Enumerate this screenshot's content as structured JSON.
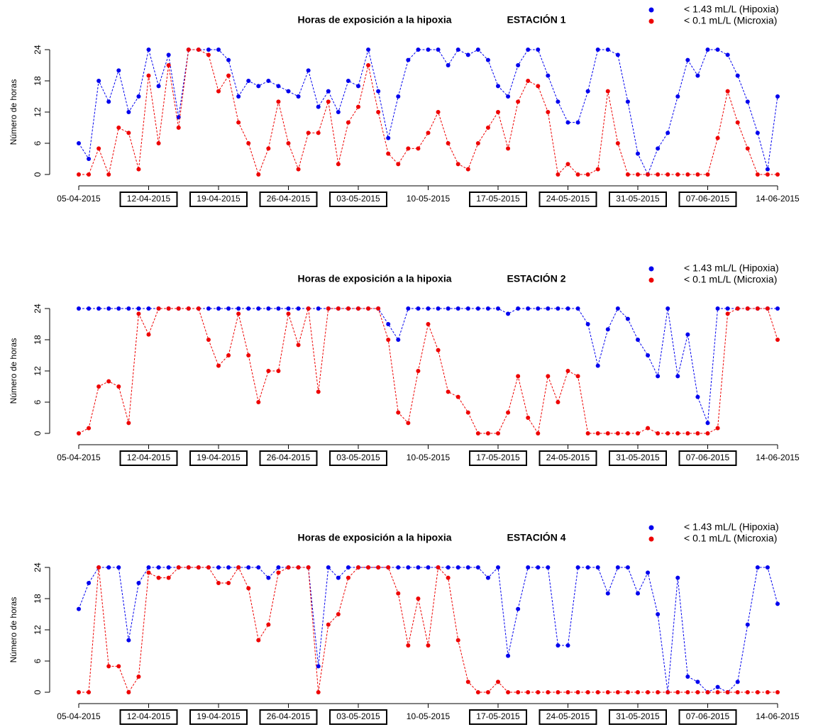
{
  "chart_data": [
    {
      "type": "line",
      "title": "Horas de exposición a la hipoxia",
      "subtitle": "ESTACIÓN 1",
      "y_label": "Número de horas",
      "x": [
        "05-04-2015",
        "06-04-2015",
        "07-04-2015",
        "08-04-2015",
        "09-04-2015",
        "10-04-2015",
        "11-04-2015",
        "12-04-2015",
        "13-04-2015",
        "14-04-2015",
        "15-04-2015",
        "16-04-2015",
        "17-04-2015",
        "18-04-2015",
        "19-04-2015",
        "20-04-2015",
        "21-04-2015",
        "22-04-2015",
        "23-04-2015",
        "24-04-2015",
        "25-04-2015",
        "26-04-2015",
        "27-04-2015",
        "28-04-2015",
        "29-04-2015",
        "30-04-2015",
        "01-05-2015",
        "02-05-2015",
        "03-05-2015",
        "04-05-2015",
        "05-05-2015",
        "06-05-2015",
        "07-05-2015",
        "08-05-2015",
        "09-05-2015",
        "10-05-2015",
        "11-05-2015",
        "12-05-2015",
        "13-05-2015",
        "14-05-2015",
        "15-05-2015",
        "16-05-2015",
        "17-05-2015",
        "18-05-2015",
        "19-05-2015",
        "20-05-2015",
        "21-05-2015",
        "22-05-2015",
        "23-05-2015",
        "24-05-2015",
        "25-05-2015",
        "26-05-2015",
        "27-05-2015",
        "28-05-2015",
        "29-05-2015",
        "30-05-2015",
        "31-05-2015",
        "01-06-2015",
        "02-06-2015",
        "03-06-2015",
        "04-06-2015",
        "05-06-2015",
        "06-06-2015",
        "07-06-2015",
        "08-06-2015",
        "09-06-2015",
        "10-06-2015",
        "11-06-2015",
        "12-06-2015",
        "13-06-2015",
        "14-06-2015"
      ],
      "series": [
        {
          "name": "< 1.43 mL/L (Hipoxia)",
          "color": "#0000ee",
          "values": [
            6,
            3,
            18,
            14,
            20,
            12,
            15,
            24,
            17,
            23,
            11,
            24,
            24,
            24,
            24,
            22,
            15,
            18,
            17,
            18,
            17,
            16,
            15,
            20,
            13,
            16,
            12,
            18,
            17,
            24,
            16,
            7,
            15,
            22,
            24,
            24,
            24,
            21,
            24,
            23,
            24,
            22,
            17,
            15,
            21,
            24,
            24,
            19,
            14,
            10,
            10,
            16,
            24,
            24,
            23,
            14,
            4,
            0,
            5,
            8,
            15,
            22,
            19,
            24,
            24,
            23,
            19,
            14,
            8,
            1,
            15
          ]
        },
        {
          "name": "<  0.1 mL/L (Microxia)",
          "color": "#ee0000",
          "values": [
            0,
            0,
            5,
            0,
            9,
            8,
            1,
            19,
            6,
            21,
            9,
            24,
            24,
            23,
            16,
            19,
            10,
            6,
            0,
            5,
            14,
            6,
            1,
            8,
            8,
            14,
            2,
            10,
            13,
            21,
            12,
            4,
            2,
            5,
            5,
            8,
            12,
            6,
            2,
            1,
            6,
            9,
            12,
            5,
            14,
            18,
            17,
            12,
            0,
            2,
            0,
            0,
            1,
            16,
            6,
            0,
            0,
            0,
            0,
            0,
            0,
            0,
            0,
            0,
            7,
            16,
            10,
            5,
            0,
            0,
            0
          ]
        }
      ],
      "xlim": [
        "05-04-2015",
        "14-06-2015"
      ],
      "xticks": [
        "05-04-2015",
        "12-04-2015",
        "19-04-2015",
        "26-04-2015",
        "03-05-2015",
        "10-05-2015",
        "17-05-2015",
        "24-05-2015",
        "31-05-2015",
        "07-06-2015",
        "14-06-2015"
      ],
      "boxed_xticks": [
        1,
        2,
        3,
        4,
        6,
        7,
        8,
        9
      ],
      "ylim": [
        0,
        24
      ],
      "yticks": [
        0,
        6,
        12,
        18,
        24
      ],
      "legend": "top-right"
    },
    {
      "type": "line",
      "title": "Horas de exposición a la hipoxia",
      "subtitle": "ESTACIÓN 2",
      "y_label": "Número de horas",
      "x": [
        "05-04-2015",
        "06-04-2015",
        "07-04-2015",
        "08-04-2015",
        "09-04-2015",
        "10-04-2015",
        "11-04-2015",
        "12-04-2015",
        "13-04-2015",
        "14-04-2015",
        "15-04-2015",
        "16-04-2015",
        "17-04-2015",
        "18-04-2015",
        "19-04-2015",
        "20-04-2015",
        "21-04-2015",
        "22-04-2015",
        "23-04-2015",
        "24-04-2015",
        "25-04-2015",
        "26-04-2015",
        "27-04-2015",
        "28-04-2015",
        "29-04-2015",
        "30-04-2015",
        "01-05-2015",
        "02-05-2015",
        "03-05-2015",
        "04-05-2015",
        "05-05-2015",
        "06-05-2015",
        "07-05-2015",
        "08-05-2015",
        "09-05-2015",
        "10-05-2015",
        "11-05-2015",
        "12-05-2015",
        "13-05-2015",
        "14-05-2015",
        "15-05-2015",
        "16-05-2015",
        "17-05-2015",
        "18-05-2015",
        "19-05-2015",
        "20-05-2015",
        "21-05-2015",
        "22-05-2015",
        "23-05-2015",
        "24-05-2015",
        "25-05-2015",
        "26-05-2015",
        "27-05-2015",
        "28-05-2015",
        "29-05-2015",
        "30-05-2015",
        "31-05-2015",
        "01-06-2015",
        "02-06-2015",
        "03-06-2015",
        "04-06-2015",
        "05-06-2015",
        "06-06-2015",
        "07-06-2015",
        "08-06-2015",
        "09-06-2015",
        "10-06-2015",
        "11-06-2015",
        "12-06-2015",
        "13-06-2015",
        "14-06-2015"
      ],
      "series": [
        {
          "name": "< 1.43 mL/L (Hipoxia)",
          "color": "#0000ee",
          "values": [
            24,
            24,
            24,
            24,
            24,
            24,
            24,
            24,
            24,
            24,
            24,
            24,
            24,
            24,
            24,
            24,
            24,
            24,
            24,
            24,
            24,
            24,
            24,
            24,
            24,
            24,
            24,
            24,
            24,
            24,
            24,
            21,
            18,
            24,
            24,
            24,
            24,
            24,
            24,
            24,
            24,
            24,
            24,
            23,
            24,
            24,
            24,
            24,
            24,
            24,
            24,
            21,
            13,
            20,
            24,
            22,
            18,
            15,
            11,
            24,
            11,
            19,
            7,
            2,
            24,
            24,
            24,
            24,
            24,
            24,
            24
          ]
        },
        {
          "name": "<  0.1 mL/L (Microxia)",
          "color": "#ee0000",
          "values": [
            0,
            1,
            9,
            10,
            9,
            2,
            23,
            19,
            24,
            24,
            24,
            24,
            24,
            18,
            13,
            15,
            23,
            15,
            6,
            12,
            12,
            23,
            17,
            24,
            8,
            24,
            24,
            24,
            24,
            24,
            24,
            18,
            4,
            2,
            12,
            21,
            16,
            8,
            7,
            4,
            0,
            0,
            0,
            4,
            11,
            3,
            0,
            11,
            6,
            12,
            11,
            0,
            0,
            0,
            0,
            0,
            0,
            1,
            0,
            0,
            0,
            0,
            0,
            0,
            1,
            23,
            24,
            24,
            24,
            24,
            18
          ]
        }
      ],
      "xlim": [
        "05-04-2015",
        "14-06-2015"
      ],
      "xticks": [
        "05-04-2015",
        "12-04-2015",
        "19-04-2015",
        "26-04-2015",
        "03-05-2015",
        "10-05-2015",
        "17-05-2015",
        "24-05-2015",
        "31-05-2015",
        "07-06-2015",
        "14-06-2015"
      ],
      "boxed_xticks": [
        1,
        2,
        3,
        4,
        6,
        7,
        8,
        9
      ],
      "ylim": [
        0,
        24
      ],
      "yticks": [
        0,
        6,
        12,
        18,
        24
      ],
      "legend": "top-right"
    },
    {
      "type": "line",
      "title": "Horas de exposición a la hipoxia",
      "subtitle": "ESTACIÓN 4",
      "y_label": "Número de horas",
      "x": [
        "05-04-2015",
        "06-04-2015",
        "07-04-2015",
        "08-04-2015",
        "09-04-2015",
        "10-04-2015",
        "11-04-2015",
        "12-04-2015",
        "13-04-2015",
        "14-04-2015",
        "15-04-2015",
        "16-04-2015",
        "17-04-2015",
        "18-04-2015",
        "19-04-2015",
        "20-04-2015",
        "21-04-2015",
        "22-04-2015",
        "23-04-2015",
        "24-04-2015",
        "25-04-2015",
        "26-04-2015",
        "27-04-2015",
        "28-04-2015",
        "29-04-2015",
        "30-04-2015",
        "01-05-2015",
        "02-05-2015",
        "03-05-2015",
        "04-05-2015",
        "05-05-2015",
        "06-05-2015",
        "07-05-2015",
        "08-05-2015",
        "09-05-2015",
        "10-05-2015",
        "11-05-2015",
        "12-05-2015",
        "13-05-2015",
        "14-05-2015",
        "15-05-2015",
        "16-05-2015",
        "17-05-2015",
        "18-05-2015",
        "19-05-2015",
        "20-05-2015",
        "21-05-2015",
        "22-05-2015",
        "23-05-2015",
        "24-05-2015",
        "25-05-2015",
        "26-05-2015",
        "27-05-2015",
        "28-05-2015",
        "29-05-2015",
        "30-05-2015",
        "31-05-2015",
        "01-06-2015",
        "02-06-2015",
        "03-06-2015",
        "04-06-2015",
        "05-06-2015",
        "06-06-2015",
        "07-06-2015",
        "08-06-2015",
        "09-06-2015",
        "10-06-2015",
        "11-06-2015",
        "12-06-2015",
        "13-06-2015",
        "14-06-2015"
      ],
      "series": [
        {
          "name": "< 1.43 mL/L (Hipoxia)",
          "color": "#0000ee",
          "values": [
            16,
            21,
            24,
            24,
            24,
            10,
            21,
            24,
            24,
            24,
            24,
            24,
            24,
            24,
            24,
            24,
            24,
            24,
            24,
            22,
            24,
            24,
            24,
            24,
            5,
            24,
            22,
            24,
            24,
            24,
            24,
            24,
            24,
            24,
            24,
            24,
            24,
            24,
            24,
            24,
            24,
            22,
            24,
            7,
            16,
            24,
            24,
            24,
            9,
            9,
            24,
            24,
            24,
            19,
            24,
            24,
            19,
            23,
            15,
            0,
            22,
            3,
            2,
            0,
            1,
            0,
            2,
            13,
            24,
            24,
            17
          ]
        },
        {
          "name": "<  0.1 mL/L (Microxia)",
          "color": "#ee0000",
          "values": [
            0,
            0,
            24,
            5,
            5,
            0,
            3,
            23,
            22,
            22,
            24,
            24,
            24,
            24,
            21,
            21,
            24,
            20,
            10,
            13,
            23,
            24,
            24,
            24,
            0,
            13,
            15,
            22,
            24,
            24,
            24,
            24,
            19,
            9,
            18,
            9,
            24,
            22,
            10,
            2,
            0,
            0,
            2,
            0,
            0,
            0,
            0,
            0,
            0,
            0,
            0,
            0,
            0,
            0,
            0,
            0,
            0,
            0,
            0,
            0,
            0,
            0,
            0,
            0,
            0,
            0,
            0,
            0,
            0,
            0,
            0
          ]
        }
      ],
      "xlim": [
        "05-04-2015",
        "14-06-2015"
      ],
      "xticks": [
        "05-04-2015",
        "12-04-2015",
        "19-04-2015",
        "26-04-2015",
        "03-05-2015",
        "10-05-2015",
        "17-05-2015",
        "24-05-2015",
        "31-05-2015",
        "07-06-2015",
        "14-06-2015"
      ],
      "boxed_xticks": [
        1,
        2,
        3,
        4,
        6,
        7,
        8,
        9
      ],
      "ylim": [
        0,
        24
      ],
      "yticks": [
        0,
        6,
        12,
        18,
        24
      ],
      "legend": "top-right"
    }
  ]
}
